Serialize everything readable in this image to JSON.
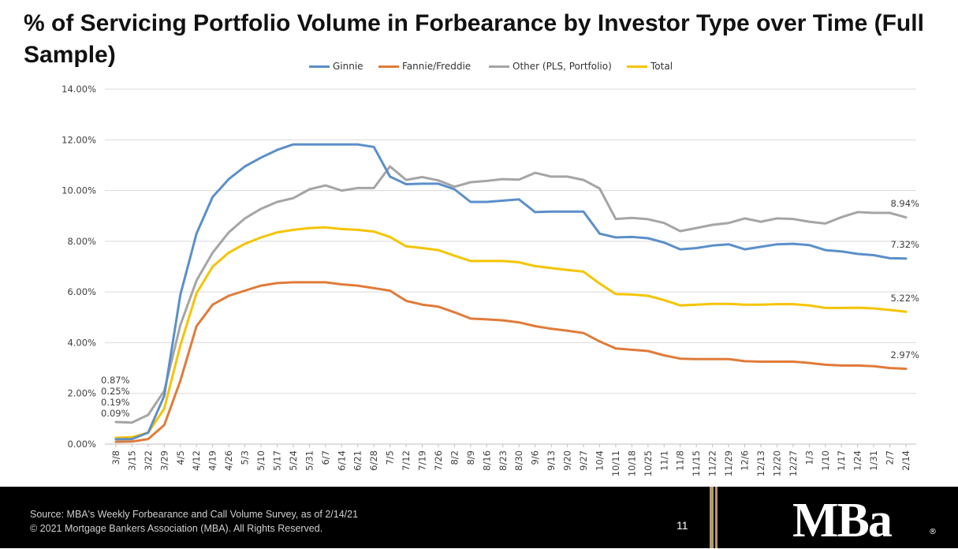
{
  "title": "% of Servicing Portfolio Volume in Forbearance by Investor Type over Time (Full Sample)",
  "footer": {
    "source": "Source: MBA's Weekly Forbearance and Call Volume Survey, as of 2/14/21",
    "copyright": "© 2021 Mortgage Bankers Association (MBA). All Rights Reserved.",
    "page_number": "11",
    "logo_text": "MBa",
    "logo_mark": "®"
  },
  "colors": {
    "ginnie": "#5b8fc9",
    "fannie": "#e07b39",
    "other": "#a5a5a5",
    "total": "#f5c400",
    "grid": "#d9d9d9",
    "footer_bg": "#000000",
    "gold_accent": "#b39b6e"
  },
  "chart_data": {
    "type": "line",
    "title": "% of Servicing Portfolio Volume in Forbearance by Investor Type over Time (Full Sample)",
    "xlabel": "",
    "ylabel": "",
    "ylim": [
      0,
      14
    ],
    "y_ticks": [
      "0.00%",
      "2.00%",
      "4.00%",
      "6.00%",
      "8.00%",
      "10.00%",
      "12.00%",
      "14.00%"
    ],
    "grid": true,
    "legend_position": "top",
    "categories": [
      "3/8",
      "3/15",
      "3/22",
      "3/29",
      "4/5",
      "4/12",
      "4/19",
      "4/26",
      "5/3",
      "5/10",
      "5/17",
      "5/24",
      "5/31",
      "6/7",
      "6/14",
      "6/21",
      "6/28",
      "7/5",
      "7/12",
      "7/19",
      "7/26",
      "8/2",
      "8/9",
      "8/16",
      "8/23",
      "8/30",
      "9/6",
      "9/13",
      "9/20",
      "9/27",
      "10/4",
      "10/11",
      "10/18",
      "10/25",
      "11/1",
      "11/8",
      "11/15",
      "11/22",
      "11/29",
      "12/6",
      "12/13",
      "12/20",
      "12/27",
      "1/3",
      "1/10",
      "1/17",
      "1/24",
      "1/31",
      "2/7",
      "2/14"
    ],
    "series": [
      {
        "name": "Ginnie",
        "color_key": "ginnie",
        "values": [
          0.19,
          0.2,
          0.45,
          1.9,
          5.9,
          8.3,
          9.75,
          10.45,
          10.95,
          11.3,
          11.6,
          11.82,
          11.82,
          11.82,
          11.82,
          11.82,
          11.72,
          10.55,
          10.25,
          10.27,
          10.27,
          10.05,
          9.55,
          9.55,
          9.6,
          9.65,
          9.15,
          9.17,
          9.17,
          9.17,
          8.3,
          8.15,
          8.17,
          8.12,
          7.95,
          7.68,
          7.73,
          7.83,
          7.88,
          7.68,
          7.78,
          7.88,
          7.9,
          7.85,
          7.65,
          7.6,
          7.5,
          7.45,
          7.33,
          7.32
        ]
      },
      {
        "name": "Fannie/Freddie",
        "color_key": "fannie",
        "values": [
          0.09,
          0.1,
          0.2,
          0.75,
          2.5,
          4.65,
          5.5,
          5.85,
          6.05,
          6.25,
          6.35,
          6.38,
          6.38,
          6.38,
          6.3,
          6.25,
          6.15,
          6.05,
          5.65,
          5.5,
          5.42,
          5.2,
          4.95,
          4.92,
          4.88,
          4.8,
          4.65,
          4.55,
          4.47,
          4.38,
          4.05,
          3.77,
          3.72,
          3.67,
          3.5,
          3.37,
          3.35,
          3.35,
          3.35,
          3.27,
          3.25,
          3.25,
          3.25,
          3.2,
          3.13,
          3.1,
          3.1,
          3.07,
          3.0,
          2.97
        ]
      },
      {
        "name": "Other (PLS, Portfolio)",
        "color_key": "other",
        "values": [
          0.87,
          0.85,
          1.15,
          2.1,
          4.7,
          6.45,
          7.55,
          8.35,
          8.9,
          9.28,
          9.55,
          9.7,
          10.05,
          10.2,
          10.0,
          10.1,
          10.1,
          10.95,
          10.42,
          10.53,
          10.4,
          10.15,
          10.33,
          10.38,
          10.45,
          10.43,
          10.7,
          10.55,
          10.55,
          10.42,
          10.08,
          8.88,
          8.92,
          8.87,
          8.72,
          8.4,
          8.52,
          8.65,
          8.72,
          8.9,
          8.77,
          8.9,
          8.88,
          8.77,
          8.7,
          8.95,
          9.15,
          9.12,
          9.12,
          8.94
        ]
      },
      {
        "name": "Total",
        "color_key": "total",
        "values": [
          0.25,
          0.27,
          0.45,
          1.4,
          3.9,
          5.95,
          7.0,
          7.55,
          7.9,
          8.15,
          8.35,
          8.45,
          8.52,
          8.55,
          8.48,
          8.45,
          8.38,
          8.17,
          7.8,
          7.73,
          7.65,
          7.43,
          7.22,
          7.22,
          7.22,
          7.17,
          7.02,
          6.94,
          6.87,
          6.8,
          6.33,
          5.92,
          5.9,
          5.85,
          5.68,
          5.47,
          5.5,
          5.53,
          5.53,
          5.5,
          5.5,
          5.52,
          5.52,
          5.47,
          5.37,
          5.37,
          5.38,
          5.35,
          5.29,
          5.22
        ]
      }
    ],
    "start_annotations": [
      "0.87%",
      "0.25%",
      "0.19%",
      "0.09%"
    ],
    "end_annotations": [
      "8.94%",
      "7.32%",
      "5.22%",
      "2.97%"
    ]
  }
}
